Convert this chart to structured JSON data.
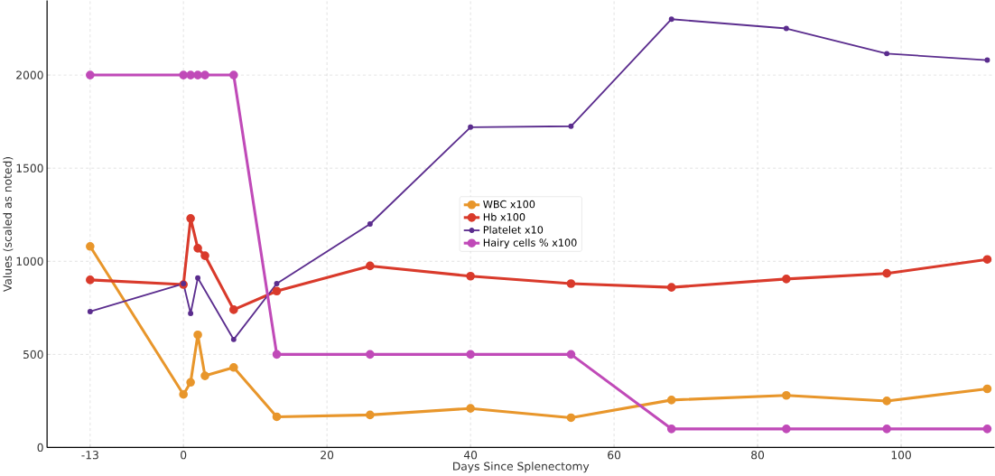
{
  "chart_data": {
    "type": "line",
    "xlabel": "Days Since Splenectomy",
    "ylabel": "Values (scaled as noted)",
    "xlim": [
      -19,
      113
    ],
    "ylim": [
      0,
      2400
    ],
    "xticks": [
      -13,
      0,
      20,
      40,
      60,
      80,
      100
    ],
    "yticks": [
      0,
      500,
      1000,
      1500,
      2000
    ],
    "grid": true,
    "legend": "center",
    "marker": "circle",
    "line_style": "solid",
    "series": [
      {
        "name": "WBC x100",
        "color": "#e8962b",
        "x": [
          -13,
          0,
          1,
          2,
          3,
          7,
          13,
          26,
          40,
          54,
          68,
          84,
          98,
          112
        ],
        "values": [
          1080,
          285,
          350,
          605,
          385,
          430,
          165,
          175,
          210,
          160,
          255,
          280,
          250,
          315
        ]
      },
      {
        "name": "Hb x100",
        "color": "#d93a2b",
        "x": [
          -13,
          0,
          1,
          2,
          3,
          7,
          13,
          26,
          40,
          54,
          68,
          84,
          98,
          112
        ],
        "values": [
          900,
          875,
          1230,
          1070,
          1030,
          740,
          840,
          975,
          920,
          880,
          860,
          905,
          935,
          1010
        ]
      },
      {
        "name": "Platelet x10",
        "color": "#5b2d8e",
        "x": [
          -13,
          0,
          1,
          2,
          7,
          13,
          26,
          40,
          54,
          68,
          84,
          98,
          112
        ],
        "values": [
          730,
          880,
          720,
          910,
          580,
          880,
          1200,
          1720,
          1725,
          2300,
          2250,
          2115,
          2080
        ]
      },
      {
        "name": "Hairy cells % x100",
        "color": "#c04ab8",
        "x": [
          -13,
          0,
          1,
          2,
          3,
          7,
          13,
          26,
          40,
          54,
          68,
          84,
          98,
          112
        ],
        "values": [
          2000,
          2000,
          2000,
          2000,
          2000,
          2000,
          500,
          500,
          500,
          500,
          100,
          100,
          100,
          100
        ]
      }
    ]
  }
}
